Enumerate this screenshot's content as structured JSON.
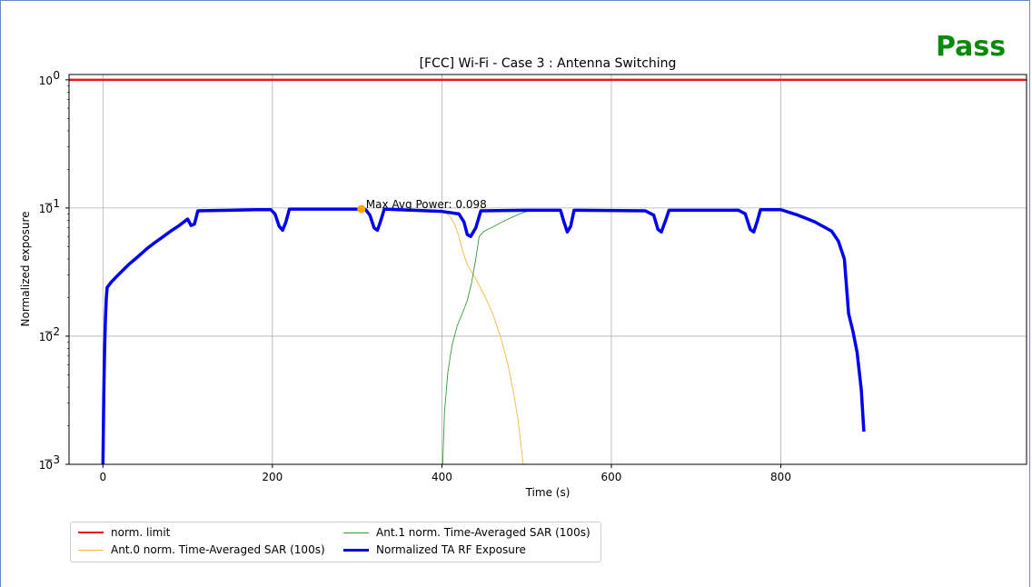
{
  "badge": {
    "text": "Pass",
    "color": "#0a8a0a"
  },
  "chart_data": {
    "type": "line",
    "title": "[FCC] Wi-Fi - Case 3 : Antenna Switching",
    "xlabel": "Time (s)",
    "ylabel": "Normalized exposure",
    "xlim": [
      -40,
      1090
    ],
    "ylim": [
      0.001,
      1.1
    ],
    "yscale": "log",
    "grid": true,
    "x_ticks": [
      0,
      200,
      400,
      600,
      800
    ],
    "y_ticks": [
      {
        "value": 0.001,
        "base": "10",
        "exp": "−3"
      },
      {
        "value": 0.01,
        "base": "10",
        "exp": "−2"
      },
      {
        "value": 0.1,
        "base": "10",
        "exp": "−1"
      },
      {
        "value": 1,
        "base": "10",
        "exp": "0"
      }
    ],
    "legend_position": "below-left",
    "annotation": {
      "text": "Max Avg Power: 0.098",
      "x": 305,
      "y": 0.098,
      "marker_color": "#ffa500"
    },
    "series": [
      {
        "name": "norm. limit",
        "color": "#e31a1c",
        "width": 2.5,
        "points": [
          [
            -40,
            1.0
          ],
          [
            1090,
            1.0
          ]
        ]
      },
      {
        "name": "Ant.0 norm. Time-Averaged SAR (100s)",
        "color": "#f5b942",
        "width": 0.9,
        "points": [
          [
            400,
            0.095
          ],
          [
            405,
            0.091
          ],
          [
            410,
            0.085
          ],
          [
            415,
            0.075
          ],
          [
            420,
            0.06
          ],
          [
            425,
            0.045
          ],
          [
            430,
            0.036
          ],
          [
            440,
            0.028
          ],
          [
            450,
            0.021
          ],
          [
            460,
            0.015
          ],
          [
            470,
            0.0095
          ],
          [
            478,
            0.006
          ],
          [
            485,
            0.0035
          ],
          [
            490,
            0.0022
          ],
          [
            494,
            0.0013
          ],
          [
            496,
            0.001
          ]
        ]
      },
      {
        "name": "Ant.1 norm. Time-Averaged SAR (100s)",
        "color": "#3a9a3a",
        "width": 0.9,
        "points": [
          [
            401,
            0.001
          ],
          [
            403,
            0.0025
          ],
          [
            407,
            0.0052
          ],
          [
            412,
            0.0085
          ],
          [
            418,
            0.012
          ],
          [
            424,
            0.015
          ],
          [
            430,
            0.019
          ],
          [
            435,
            0.026
          ],
          [
            440,
            0.04
          ],
          [
            444,
            0.06
          ],
          [
            450,
            0.066
          ],
          [
            460,
            0.071
          ],
          [
            470,
            0.077
          ],
          [
            480,
            0.083
          ],
          [
            490,
            0.089
          ],
          [
            500,
            0.094
          ],
          [
            510,
            0.096
          ]
        ]
      },
      {
        "name": "Normalized TA RF Exposure",
        "color": "#0000ee",
        "width": 3.5,
        "points": [
          [
            0,
            0.001
          ],
          [
            1,
            0.0035
          ],
          [
            2,
            0.008
          ],
          [
            3,
            0.014
          ],
          [
            4,
            0.02
          ],
          [
            5,
            0.024
          ],
          [
            10,
            0.0265
          ],
          [
            20,
            0.031
          ],
          [
            30,
            0.036
          ],
          [
            40,
            0.041
          ],
          [
            50,
            0.047
          ],
          [
            60,
            0.053
          ],
          [
            70,
            0.059
          ],
          [
            80,
            0.066
          ],
          [
            90,
            0.073
          ],
          [
            100,
            0.082
          ],
          [
            104,
            0.073
          ],
          [
            108,
            0.075
          ],
          [
            112,
            0.095
          ],
          [
            150,
            0.096
          ],
          [
            180,
            0.097
          ],
          [
            198,
            0.097
          ],
          [
            203,
            0.09
          ],
          [
            208,
            0.072
          ],
          [
            212,
            0.067
          ],
          [
            216,
            0.078
          ],
          [
            220,
            0.098
          ],
          [
            300,
            0.098
          ],
          [
            310,
            0.097
          ],
          [
            315,
            0.088
          ],
          [
            320,
            0.07
          ],
          [
            324,
            0.067
          ],
          [
            328,
            0.08
          ],
          [
            332,
            0.098
          ],
          [
            400,
            0.094
          ],
          [
            420,
            0.09
          ],
          [
            426,
            0.078
          ],
          [
            430,
            0.062
          ],
          [
            434,
            0.06
          ],
          [
            440,
            0.07
          ],
          [
            446,
            0.095
          ],
          [
            500,
            0.096
          ],
          [
            540,
            0.096
          ],
          [
            544,
            0.078
          ],
          [
            548,
            0.065
          ],
          [
            552,
            0.072
          ],
          [
            556,
            0.096
          ],
          [
            640,
            0.095
          ],
          [
            650,
            0.088
          ],
          [
            655,
            0.068
          ],
          [
            659,
            0.065
          ],
          [
            664,
            0.08
          ],
          [
            668,
            0.096
          ],
          [
            750,
            0.096
          ],
          [
            758,
            0.09
          ],
          [
            764,
            0.068
          ],
          [
            768,
            0.065
          ],
          [
            772,
            0.078
          ],
          [
            776,
            0.097
          ],
          [
            800,
            0.097
          ],
          [
            820,
            0.088
          ],
          [
            840,
            0.078
          ],
          [
            860,
            0.066
          ],
          [
            868,
            0.055
          ],
          [
            875,
            0.04
          ],
          [
            880,
            0.015
          ],
          [
            885,
            0.011
          ],
          [
            890,
            0.0075
          ],
          [
            895,
            0.0038
          ],
          [
            898,
            0.0018
          ]
        ]
      }
    ]
  }
}
